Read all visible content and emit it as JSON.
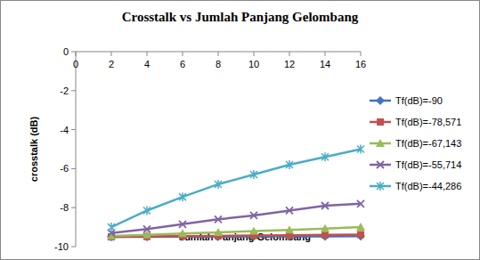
{
  "chart_data": {
    "type": "line",
    "title": "Crosstalk vs Jumlah Panjang Gelombang",
    "x_label": "Jumlah Panjang Gelombang",
    "y_label": "crosstalk (dB)",
    "x": [
      2,
      4,
      6,
      8,
      10,
      12,
      14,
      16
    ],
    "xlim": [
      0,
      16
    ],
    "xticks": [
      0,
      2,
      4,
      6,
      8,
      10,
      12,
      14,
      16
    ],
    "ylim": [
      -10,
      0
    ],
    "yticks": [
      0,
      -2,
      -4,
      -6,
      -8,
      -10
    ],
    "grid": false,
    "legend": "right",
    "series": [
      {
        "name": "Tf(dB)=-90",
        "color": "#4472c4",
        "marker": "diamond",
        "values": [
          -9.5,
          -9.5,
          -9.49,
          -9.49,
          -9.48,
          -9.48,
          -9.47,
          -9.46
        ]
      },
      {
        "name": "Tf(dB)=-78,571",
        "color": "#c0504d",
        "marker": "square",
        "values": [
          -9.5,
          -9.48,
          -9.46,
          -9.45,
          -9.43,
          -9.42,
          -9.4,
          -9.38
        ]
      },
      {
        "name": "Tf(dB)=-67,143",
        "color": "#9bbb59",
        "marker": "triangle",
        "values": [
          -9.45,
          -9.4,
          -9.33,
          -9.27,
          -9.2,
          -9.14,
          -9.07,
          -9.0
        ]
      },
      {
        "name": "Tf(dB)=-55,714",
        "color": "#8064a2",
        "marker": "x",
        "values": [
          -9.3,
          -9.1,
          -8.85,
          -8.6,
          -8.4,
          -8.15,
          -7.9,
          -7.8
        ]
      },
      {
        "name": "Tf(dB)=-44,286",
        "color": "#4bacc6",
        "marker": "star",
        "values": [
          -9.0,
          -8.15,
          -7.45,
          -6.8,
          -6.3,
          -5.8,
          -5.4,
          -5.0
        ]
      }
    ]
  }
}
